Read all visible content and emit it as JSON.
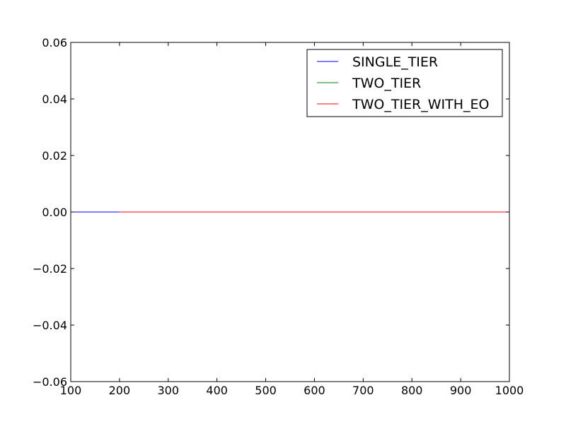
{
  "chart_data": {
    "type": "line",
    "title": "",
    "xlabel": "",
    "ylabel": "",
    "xlim": [
      100,
      1000
    ],
    "ylim": [
      -0.06,
      0.06
    ],
    "x_ticks": [
      100,
      200,
      300,
      400,
      500,
      600,
      700,
      800,
      900,
      1000
    ],
    "x_tick_labels": [
      "100",
      "200",
      "300",
      "400",
      "500",
      "600",
      "700",
      "800",
      "900",
      "1000"
    ],
    "y_ticks": [
      0.06,
      0.04,
      0.02,
      0.0,
      -0.02,
      -0.04,
      -0.06
    ],
    "y_tick_labels": [
      "0.06",
      "0.04",
      "0.02",
      "0.00",
      "−0.02",
      "−0.04",
      "−0.06"
    ],
    "grid": false,
    "legend_position": "top-right",
    "series": [
      {
        "name": "SINGLE_TIER",
        "color": "#0000ff",
        "x": [
          100,
          1000
        ],
        "y": [
          0.0,
          0.0
        ]
      },
      {
        "name": "TWO_TIER",
        "color": "#008000",
        "x": [
          200,
          1000
        ],
        "y": [
          0.0,
          0.0
        ]
      },
      {
        "name": "TWO_TIER_WITH_EO",
        "color": "#ff0000",
        "x": [
          200,
          1000
        ],
        "y": [
          0.0,
          0.0
        ]
      }
    ]
  }
}
